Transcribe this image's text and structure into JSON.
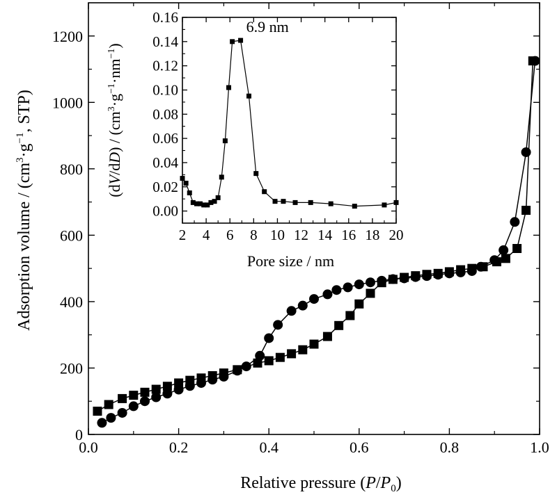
{
  "chart_data": [
    {
      "type": "scatter",
      "xlabel": "Relative pressure (P/P0)",
      "ylabel": "Adsorption volume / (cm3·g−1, STP)",
      "xlim": [
        0.0,
        1.0
      ],
      "ylim": [
        0,
        1300
      ],
      "xticks": [
        "0.0",
        "0.2",
        "0.4",
        "0.6",
        "0.8",
        "1.0"
      ],
      "yticks": [
        "0",
        "200",
        "400",
        "600",
        "800",
        "1000",
        "1200"
      ],
      "grid": false,
      "series": [
        {
          "marker": "square",
          "x": [
            0.02,
            0.045,
            0.075,
            0.1,
            0.125,
            0.15,
            0.175,
            0.2,
            0.225,
            0.25,
            0.275,
            0.3,
            0.33,
            0.375,
            0.4,
            0.425,
            0.45,
            0.475,
            0.5,
            0.53,
            0.555,
            0.58,
            0.6,
            0.625,
            0.65,
            0.675,
            0.7,
            0.725,
            0.75,
            0.775,
            0.8,
            0.825,
            0.85,
            0.875,
            0.905,
            0.925,
            0.95,
            0.97,
            0.985
          ],
          "values": [
            70,
            90,
            108,
            118,
            127,
            136,
            145,
            155,
            163,
            170,
            177,
            185,
            195,
            215,
            222,
            232,
            243,
            255,
            272,
            295,
            328,
            358,
            393,
            425,
            457,
            467,
            473,
            478,
            482,
            485,
            490,
            496,
            500,
            505,
            520,
            530,
            560,
            675,
            1125
          ]
        },
        {
          "marker": "circle",
          "x": [
            0.03,
            0.05,
            0.075,
            0.1,
            0.125,
            0.15,
            0.175,
            0.2,
            0.225,
            0.25,
            0.275,
            0.3,
            0.33,
            0.35,
            0.38,
            0.4,
            0.42,
            0.45,
            0.475,
            0.5,
            0.53,
            0.55,
            0.575,
            0.6,
            0.625,
            0.65,
            0.675,
            0.7,
            0.725,
            0.75,
            0.775,
            0.8,
            0.825,
            0.85,
            0.87,
            0.9,
            0.92,
            0.945,
            0.97,
            0.99
          ],
          "values": [
            35,
            50,
            65,
            85,
            100,
            112,
            123,
            135,
            146,
            155,
            165,
            174,
            192,
            205,
            237,
            290,
            330,
            372,
            388,
            408,
            422,
            435,
            443,
            452,
            458,
            463,
            468,
            470,
            474,
            477,
            481,
            485,
            488,
            492,
            505,
            525,
            555,
            640,
            850,
            1125
          ]
        }
      ]
    },
    {
      "type": "line",
      "xlabel": "Pore size / nm",
      "ylabel": "(dV/dD) / (cm3·g−1·nm−1)",
      "xlim": [
        2,
        20
      ],
      "ylim": [
        -0.01,
        0.16
      ],
      "xticks": [
        "2",
        "4",
        "6",
        "8",
        "10",
        "12",
        "14",
        "16",
        "18",
        "20"
      ],
      "yticks": [
        "0.00",
        "0.02",
        "0.04",
        "0.06",
        "0.08",
        "0.10",
        "0.12",
        "0.14",
        "0.16"
      ],
      "annotation": "6.9 nm",
      "series": [
        {
          "marker": "square",
          "x": [
            2.0,
            2.3,
            2.6,
            2.9,
            3.2,
            3.5,
            3.8,
            4.1,
            4.4,
            4.7,
            5.0,
            5.3,
            5.6,
            5.9,
            6.2,
            6.9,
            7.6,
            8.2,
            8.9,
            9.8,
            10.5,
            11.5,
            12.8,
            14.5,
            16.5,
            19.0,
            20.0
          ],
          "values": [
            0.027,
            0.023,
            0.015,
            0.007,
            0.006,
            0.006,
            0.005,
            0.005,
            0.007,
            0.008,
            0.011,
            0.028,
            0.058,
            0.102,
            0.14,
            0.141,
            0.095,
            0.031,
            0.016,
            0.008,
            0.008,
            0.007,
            0.007,
            0.006,
            0.004,
            0.005,
            0.007
          ]
        }
      ]
    }
  ]
}
